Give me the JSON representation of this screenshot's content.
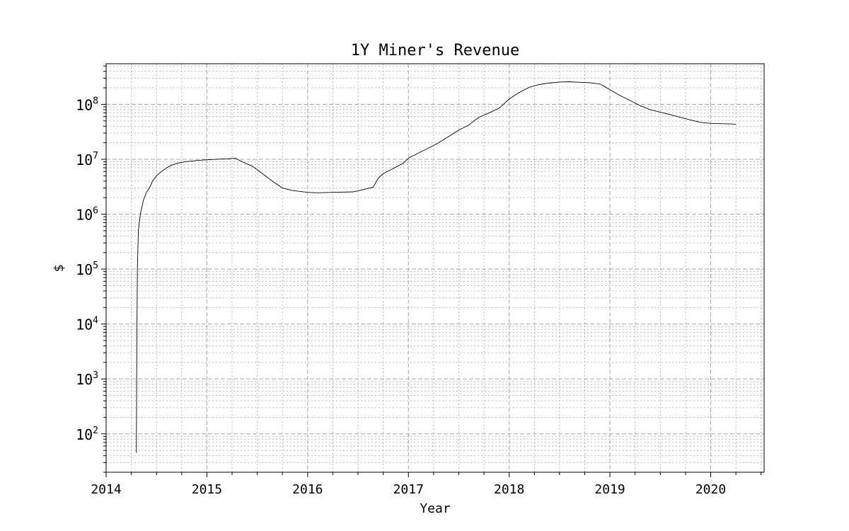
{
  "chart_data": {
    "type": "line",
    "title": "1Y Miner's Revenue",
    "xlabel": "Year",
    "ylabel": "$",
    "yscale": "log",
    "xlim": [
      2014.0,
      2020.53
    ],
    "ylim": [
      20,
      550000000
    ],
    "grid": true,
    "x_ticks": [
      "2014",
      "2015",
      "2016",
      "2017",
      "2018",
      "2019",
      "2020"
    ],
    "y_ticks": [
      {
        "base": "10",
        "exp": "2",
        "value": 100
      },
      {
        "base": "10",
        "exp": "3",
        "value": 1000
      },
      {
        "base": "10",
        "exp": "4",
        "value": 10000
      },
      {
        "base": "10",
        "exp": "5",
        "value": 100000
      },
      {
        "base": "10",
        "exp": "6",
        "value": 1000000
      },
      {
        "base": "10",
        "exp": "7",
        "value": 10000000
      },
      {
        "base": "10",
        "exp": "8",
        "value": 100000000
      }
    ],
    "line_color": "#000000",
    "series": [
      {
        "x": [
          2014.3,
          2014.305,
          2014.31,
          2014.32,
          2014.34,
          2014.37,
          2014.4,
          2014.43,
          2014.46,
          2014.5,
          2014.55,
          2014.6,
          2014.65,
          2014.7,
          2014.75,
          2014.8,
          2014.9,
          2015.0,
          2015.1,
          2015.2,
          2015.28,
          2015.35,
          2015.45,
          2015.55,
          2015.65,
          2015.75,
          2015.85,
          2016.0,
          2016.1,
          2016.25,
          2016.45,
          2016.55,
          2016.65,
          2016.7,
          2016.75,
          2016.85,
          2016.95,
          2017.0,
          2017.1,
          2017.2,
          2017.3,
          2017.4,
          2017.5,
          2017.6,
          2017.65,
          2017.7,
          2017.8,
          2017.9,
          2018.0,
          2018.1,
          2018.2,
          2018.3,
          2018.4,
          2018.5,
          2018.6,
          2018.7,
          2018.8,
          2018.9,
          2018.95,
          2019.0,
          2019.1,
          2019.2,
          2019.3,
          2019.4,
          2019.5,
          2019.6,
          2019.7,
          2019.8,
          2019.9,
          2020.0,
          2020.1,
          2020.2,
          2020.25
        ],
        "y": [
          45,
          5000,
          100000,
          500000,
          1000000,
          1800000,
          2500000,
          3000000,
          4000000,
          5000000,
          6000000,
          7000000,
          7800000,
          8400000,
          8800000,
          9100000,
          9500000,
          9800000,
          10000000,
          10200000,
          10500000,
          9000000,
          7500000,
          5500000,
          4000000,
          3000000,
          2700000,
          2500000,
          2450000,
          2500000,
          2550000,
          2800000,
          3100000,
          4500000,
          5500000,
          6800000,
          8500000,
          10500000,
          13000000,
          16000000,
          20000000,
          26000000,
          34000000,
          42000000,
          50000000,
          58000000,
          70000000,
          85000000,
          125000000,
          165000000,
          205000000,
          230000000,
          245000000,
          255000000,
          258000000,
          252000000,
          248000000,
          235000000,
          210000000,
          185000000,
          145000000,
          118000000,
          95000000,
          80000000,
          72000000,
          65000000,
          58000000,
          52000000,
          47000000,
          45000000,
          44500000,
          44000000,
          43500000
        ]
      }
    ]
  }
}
